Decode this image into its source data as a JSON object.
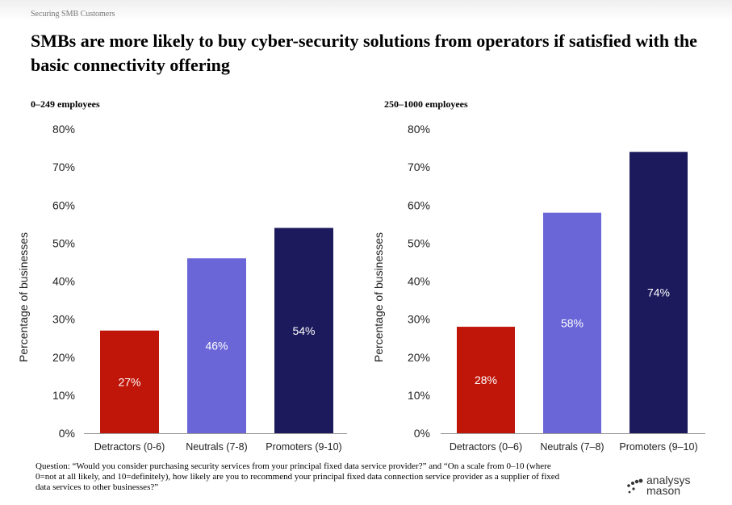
{
  "header": {
    "section_label": "Securing SMB Customers",
    "title": "SMBs are more likely to buy cyber-security solutions from operators if satisfied with the basic connectivity offering"
  },
  "chart_data": [
    {
      "type": "bar",
      "panel_title": "0–249 employees",
      "categories": [
        "Detractors (0-6)",
        "Neutrals (7-8)",
        "Promoters (9-10)"
      ],
      "values": [
        27,
        46,
        54
      ],
      "data_labels": [
        "27%",
        "46%",
        "54%"
      ],
      "bar_colors": [
        "#c0160a",
        "#6a66d8",
        "#1c1a5c"
      ],
      "ylabel": "Percentage of businesses",
      "ylim": [
        0,
        80
      ],
      "yticks": [
        "0%",
        "10%",
        "20%",
        "30%",
        "40%",
        "50%",
        "60%",
        "70%",
        "80%"
      ],
      "grid": false
    },
    {
      "type": "bar",
      "panel_title": "250–1000 employees",
      "categories": [
        "Detractors (0–6)",
        "Neutrals (7–8)",
        "Promoters (9–10)"
      ],
      "values": [
        28,
        58,
        74
      ],
      "data_labels": [
        "28%",
        "58%",
        "74%"
      ],
      "bar_colors": [
        "#c0160a",
        "#6a66d8",
        "#1c1a5c"
      ],
      "ylabel": "Percentage of businesses",
      "ylim": [
        0,
        80
      ],
      "yticks": [
        "0%",
        "10%",
        "20%",
        "30%",
        "40%",
        "50%",
        "60%",
        "70%",
        "80%"
      ],
      "grid": false
    }
  ],
  "footnote": "Question: “Would you consider purchasing security services from your principal fixed data service provider?” and “On a scale from 0–10 (where 0=not at all likely, and 10=definitely), how likely are you to recommend your principal fixed data connection service provider as a supplier of fixed data services to other businesses?”",
  "logo": {
    "line1": "analysys",
    "line2": "mason",
    "dot_color": "#333333"
  }
}
